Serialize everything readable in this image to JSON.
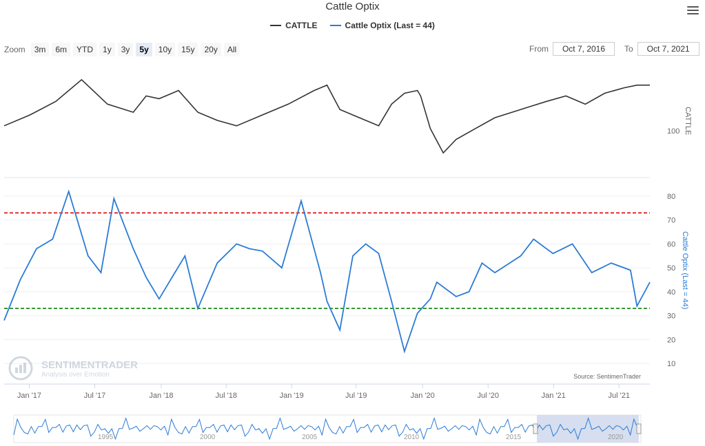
{
  "title": "Cattle Optix",
  "legend": [
    {
      "label": "CATTLE",
      "color": "#333333"
    },
    {
      "label": "Cattle Optix (Last = 44)",
      "color": "#2a7bd6"
    }
  ],
  "zoom": {
    "label": "Zoom",
    "buttons": [
      "3m",
      "6m",
      "YTD",
      "1y",
      "3y",
      "5y",
      "10y",
      "15y",
      "20y",
      "All"
    ],
    "active": "5y"
  },
  "range": {
    "from_label": "From",
    "from_value": "Oct 7, 2016",
    "to_label": "To",
    "to_value": "Oct 7, 2021"
  },
  "watermark": {
    "name": "SENTIMENTRADER",
    "tagline": "Analysis over Emotion"
  },
  "source": "Source: SentimenTrader",
  "navigator_labels": [
    "1995",
    "2000",
    "2005",
    "2010",
    "2015",
    "2020"
  ],
  "chart_data": [
    {
      "type": "line",
      "series_name": "CATTLE",
      "yaxis_label": "CATTLE",
      "yticks": [
        100
      ],
      "x_range": [
        "Oct 7, 2016",
        "Oct 7, 2021"
      ],
      "x": [
        0,
        0.04,
        0.08,
        0.12,
        0.16,
        0.2,
        0.22,
        0.24,
        0.27,
        0.3,
        0.33,
        0.36,
        0.4,
        0.44,
        0.48,
        0.5,
        0.52,
        0.55,
        0.58,
        0.6,
        0.62,
        0.64,
        0.645,
        0.66,
        0.68,
        0.7,
        0.73,
        0.76,
        0.8,
        0.84,
        0.87,
        0.9,
        0.93,
        0.96,
        0.98,
        1.0
      ],
      "values": [
        99,
        103,
        108,
        116,
        107,
        104,
        110,
        109,
        112,
        104,
        101,
        99,
        103,
        107,
        112,
        114,
        105,
        102,
        99,
        107,
        111,
        112,
        110,
        98,
        89,
        94,
        98,
        102,
        105,
        108,
        110,
        107,
        111,
        113,
        114,
        114
      ]
    },
    {
      "type": "line",
      "series_name": "Cattle Optix",
      "yaxis_label": "Cattle Optix (Last = 44)",
      "ylim": [
        10,
        82
      ],
      "yticks": [
        10,
        20,
        30,
        40,
        50,
        60,
        70,
        80
      ],
      "reference_lines": [
        {
          "value": 73,
          "color": "#e02020"
        },
        {
          "value": 33,
          "color": "#1a8a1a"
        }
      ],
      "xticks": [
        "Jan '17",
        "Jul '17",
        "Jan '18",
        "Jul '18",
        "Jan '19",
        "Jul '19",
        "Jan '20",
        "Jul '20",
        "Jan '21",
        "Jul '21"
      ],
      "xtick_pos": [
        0.048,
        0.173,
        0.3,
        0.424,
        0.549,
        0.672,
        0.799,
        0.924,
        1.049,
        1.174
      ],
      "x": [
        0,
        0.025,
        0.05,
        0.075,
        0.1,
        0.13,
        0.15,
        0.17,
        0.2,
        0.22,
        0.24,
        0.26,
        0.28,
        0.3,
        0.33,
        0.36,
        0.38,
        0.4,
        0.43,
        0.46,
        0.49,
        0.5,
        0.52,
        0.54,
        0.56,
        0.58,
        0.6,
        0.62,
        0.64,
        0.66,
        0.67,
        0.7,
        0.72,
        0.74,
        0.76,
        0.8,
        0.82,
        0.85,
        0.88,
        0.91,
        0.94,
        0.97,
        0.98,
        1.0
      ],
      "values": [
        28,
        45,
        58,
        62,
        82,
        55,
        48,
        79,
        58,
        46,
        37,
        46,
        55,
        33,
        52,
        60,
        58,
        57,
        50,
        78,
        48,
        36,
        24,
        55,
        60,
        56,
        36,
        15,
        31,
        37,
        44,
        38,
        40,
        52,
        48,
        55,
        62,
        56,
        60,
        48,
        52,
        49,
        34,
        44
      ]
    }
  ],
  "colors": {
    "accent": "#2a7bd6",
    "price": "#333333",
    "navigator_fill": "#ccd6eb"
  }
}
